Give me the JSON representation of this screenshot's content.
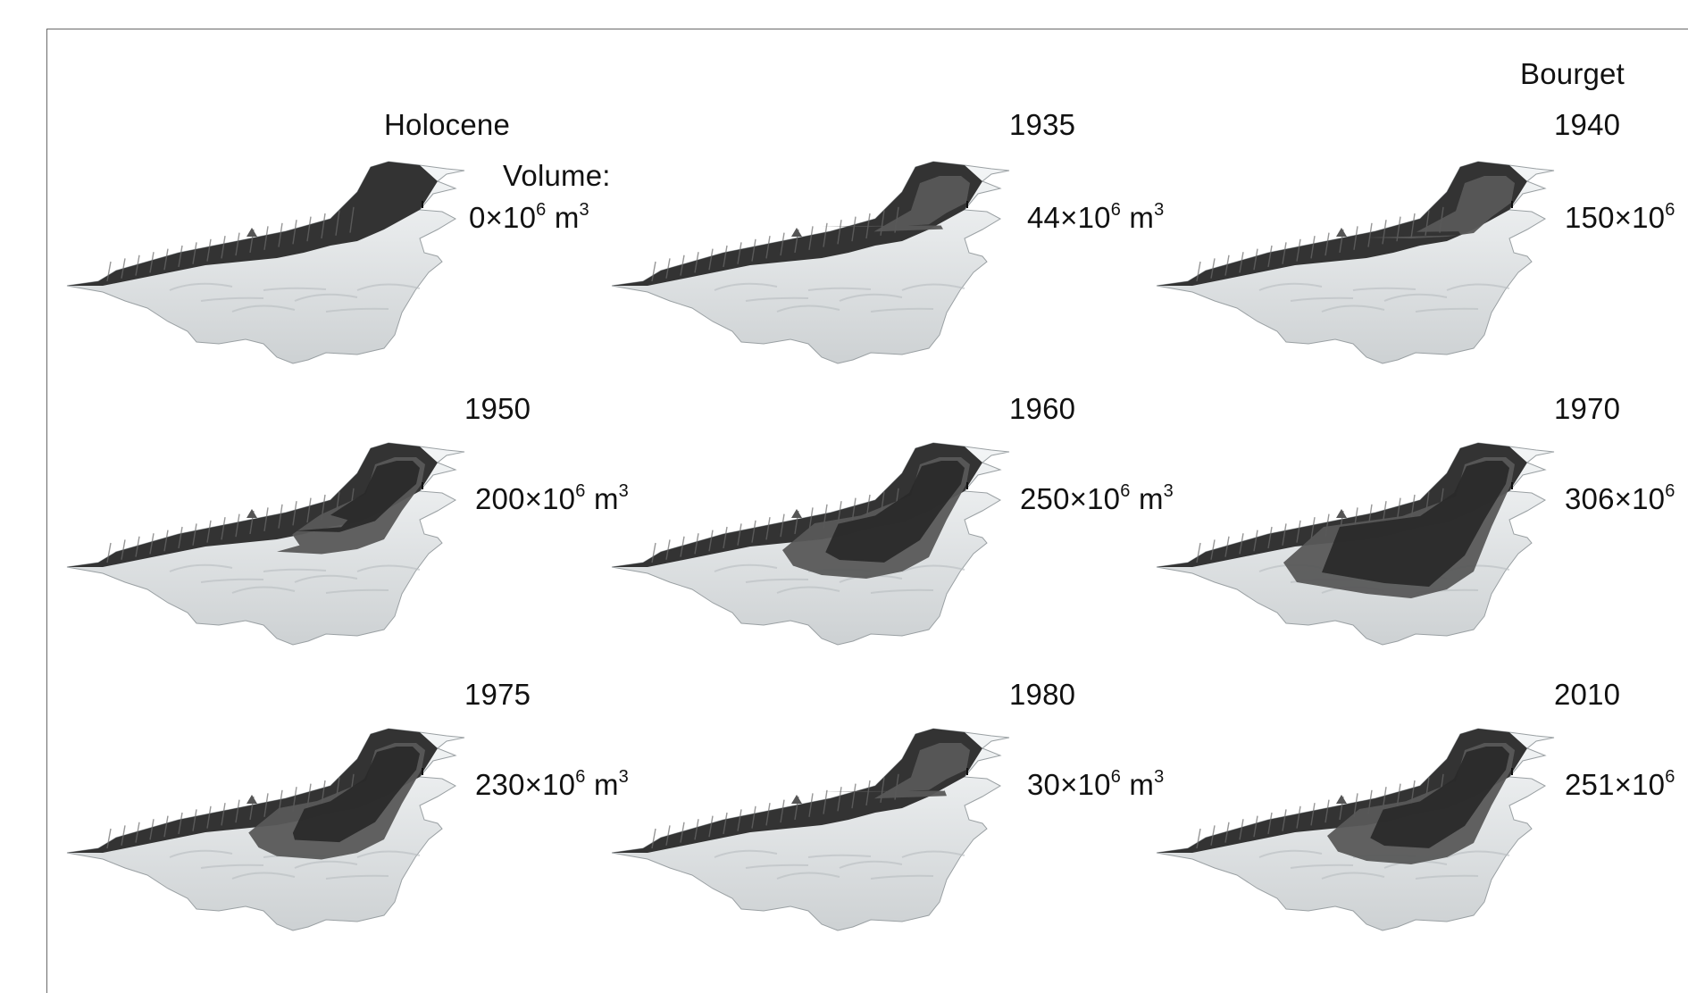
{
  "site_label": "Bourget",
  "volume_heading": "Volume:",
  "volume_unit_base": "×10",
  "volume_unit_exp": "6",
  "volume_unit_m": "m",
  "volume_unit_m_exp": "3",
  "colors": {
    "background": "#ffffff",
    "terrain_light": "#e6e9ea",
    "terrain_dark": "#333333",
    "fill_mid": "#585858",
    "fill_deep": "#2a2a2a"
  },
  "panels": [
    {
      "id": "holocene",
      "label": "Holocene",
      "volume_value": "0",
      "fill_level": 0.0,
      "truncated": false
    },
    {
      "id": "1935",
      "label": "1935",
      "volume_value": "44",
      "fill_level": 0.08,
      "truncated": false
    },
    {
      "id": "1940",
      "label": "1940",
      "volume_value": "150",
      "fill_level": 0.2,
      "truncated": true
    },
    {
      "id": "1950",
      "label": "1950",
      "volume_value": "200",
      "fill_level": 0.55,
      "truncated": false
    },
    {
      "id": "1960",
      "label": "1960",
      "volume_value": "250",
      "fill_level": 0.8,
      "truncated": false
    },
    {
      "id": "1970",
      "label": "1970",
      "volume_value": "306",
      "fill_level": 1.0,
      "truncated": true
    },
    {
      "id": "1975",
      "label": "1975",
      "volume_value": "230",
      "fill_level": 0.75,
      "truncated": false
    },
    {
      "id": "1980",
      "label": "1980",
      "volume_value": "30",
      "fill_level": 0.06,
      "truncated": false
    },
    {
      "id": "2010",
      "label": "2010",
      "volume_value": "251",
      "fill_level": 0.8,
      "truncated": true
    }
  ]
}
